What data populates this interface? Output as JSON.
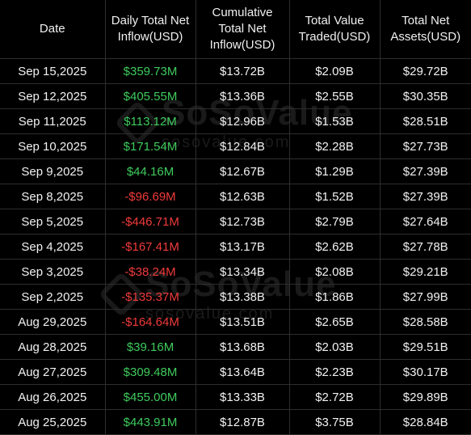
{
  "watermark": {
    "brand": "SoSoValue",
    "domain": "sosovalue.com"
  },
  "colors": {
    "background": "#000000",
    "positive": "#3ecb5d",
    "negative": "#f03a3a",
    "text": "#f2f2f2"
  },
  "table": {
    "headers": [
      "Date",
      "Daily Total Net Inflow(USD)",
      "Cumulative Total Net Inflow(USD)",
      "Total Value Traded(USD)",
      "Total Net Assets(USD)"
    ],
    "rows": [
      {
        "date": "Sep 15,2025",
        "daily_inflow": "$359.73M",
        "sign": "pos",
        "cumulative": "$13.72B",
        "traded": "$2.09B",
        "assets": "$29.72B"
      },
      {
        "date": "Sep 12,2025",
        "daily_inflow": "$405.55M",
        "sign": "pos",
        "cumulative": "$13.36B",
        "traded": "$2.55B",
        "assets": "$30.35B"
      },
      {
        "date": "Sep 11,2025",
        "daily_inflow": "$113.12M",
        "sign": "pos",
        "cumulative": "$12.96B",
        "traded": "$1.53B",
        "assets": "$28.51B"
      },
      {
        "date": "Sep 10,2025",
        "daily_inflow": "$171.54M",
        "sign": "pos",
        "cumulative": "$12.84B",
        "traded": "$2.28B",
        "assets": "$27.73B"
      },
      {
        "date": "Sep 9,2025",
        "daily_inflow": "$44.16M",
        "sign": "pos",
        "cumulative": "$12.67B",
        "traded": "$1.29B",
        "assets": "$27.39B"
      },
      {
        "date": "Sep 8,2025",
        "daily_inflow": "-$96.69M",
        "sign": "neg",
        "cumulative": "$12.63B",
        "traded": "$1.52B",
        "assets": "$27.39B"
      },
      {
        "date": "Sep 5,2025",
        "daily_inflow": "-$446.71M",
        "sign": "neg",
        "cumulative": "$12.73B",
        "traded": "$2.79B",
        "assets": "$27.64B"
      },
      {
        "date": "Sep 4,2025",
        "daily_inflow": "-$167.41M",
        "sign": "neg",
        "cumulative": "$13.17B",
        "traded": "$2.62B",
        "assets": "$27.78B"
      },
      {
        "date": "Sep 3,2025",
        "daily_inflow": "-$38.24M",
        "sign": "neg",
        "cumulative": "$13.34B",
        "traded": "$2.08B",
        "assets": "$29.21B"
      },
      {
        "date": "Sep 2,2025",
        "daily_inflow": "-$135.37M",
        "sign": "neg",
        "cumulative": "$13.38B",
        "traded": "$1.86B",
        "assets": "$27.99B"
      },
      {
        "date": "Aug 29,2025",
        "daily_inflow": "-$164.64M",
        "sign": "neg",
        "cumulative": "$13.51B",
        "traded": "$2.65B",
        "assets": "$28.58B"
      },
      {
        "date": "Aug 28,2025",
        "daily_inflow": "$39.16M",
        "sign": "pos",
        "cumulative": "$13.68B",
        "traded": "$2.03B",
        "assets": "$29.51B"
      },
      {
        "date": "Aug 27,2025",
        "daily_inflow": "$309.48M",
        "sign": "pos",
        "cumulative": "$13.64B",
        "traded": "$2.23B",
        "assets": "$30.17B"
      },
      {
        "date": "Aug 26,2025",
        "daily_inflow": "$455.00M",
        "sign": "pos",
        "cumulative": "$13.33B",
        "traded": "$2.72B",
        "assets": "$29.89B"
      },
      {
        "date": "Aug 25,2025",
        "daily_inflow": "$443.91M",
        "sign": "pos",
        "cumulative": "$12.87B",
        "traded": "$3.75B",
        "assets": "$28.84B"
      }
    ]
  }
}
